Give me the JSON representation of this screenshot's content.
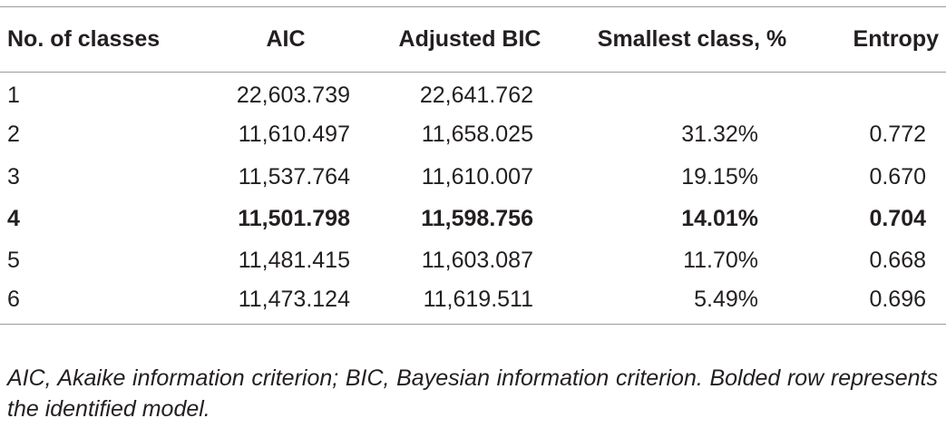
{
  "table": {
    "headers": [
      "No. of classes",
      "AIC",
      "Adjusted BIC",
      "Smallest class, %",
      "Entropy"
    ],
    "rows": [
      {
        "classes": "1",
        "aic": "22,603.739",
        "adjusted_bic": "22,641.762",
        "smallest_class": "",
        "entropy": "",
        "bold": false
      },
      {
        "classes": "2",
        "aic": "11,610.497",
        "adjusted_bic": "11,658.025",
        "smallest_class": "31.32%",
        "entropy": "0.772",
        "bold": false
      },
      {
        "classes": "3",
        "aic": "11,537.764",
        "adjusted_bic": "11,610.007",
        "smallest_class": "19.15%",
        "entropy": "0.670",
        "bold": false
      },
      {
        "classes": "4",
        "aic": "11,501.798",
        "adjusted_bic": "11,598.756",
        "smallest_class": "14.01%",
        "entropy": "0.704",
        "bold": true
      },
      {
        "classes": "5",
        "aic": "11,481.415",
        "adjusted_bic": "11,603.087",
        "smallest_class": "11.70%",
        "entropy": "0.668",
        "bold": false
      },
      {
        "classes": "6",
        "aic": "11,473.124",
        "adjusted_bic": "11,619.511",
        "smallest_class": "5.49%",
        "entropy": "0.696",
        "bold": false
      }
    ]
  },
  "footnote": "AIC, Akaike information criterion; BIC, Bayesian information criterion. Bolded row represents the identified model."
}
